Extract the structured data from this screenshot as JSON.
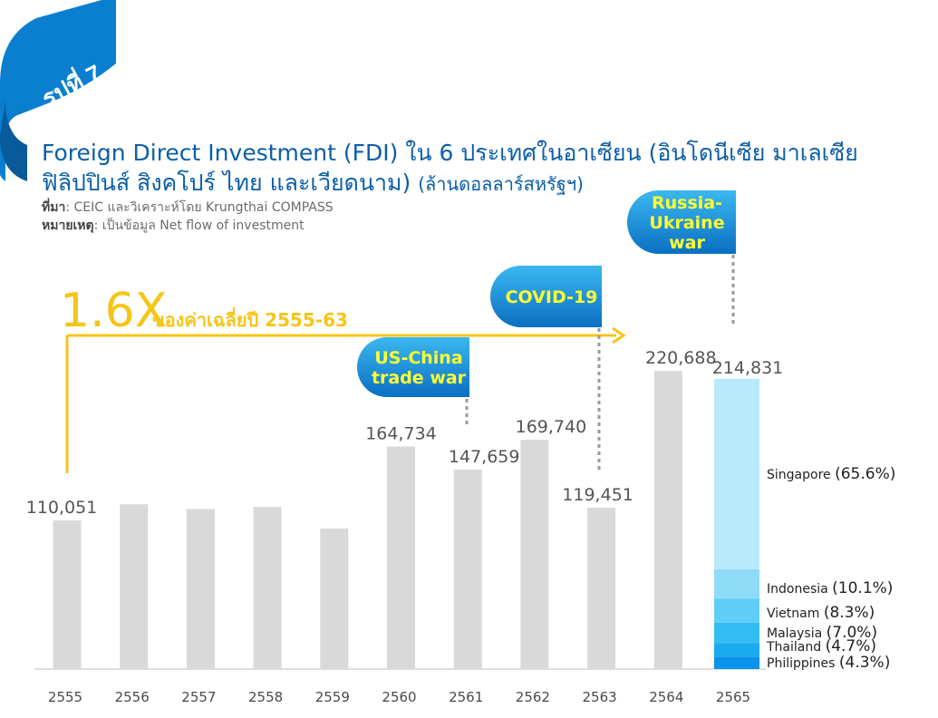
{
  "badge": {
    "label": "รูปที่ 7"
  },
  "header": {
    "title": "Foreign Direct Investment (FDI) ใน 6 ประเทศในอาเซียน (อินโดนีเซีย มาเลเซีย ฟิลิปปินส์ สิงคโปร์ ไทย และเวียดนาม)",
    "units": "(ล้านดอลลาร์สหรัฐฯ)",
    "source_label": "ที่มา",
    "source_text": ": CEIC และวิเคราะห์โดย Krungthai COMPASS",
    "note_label": "หมายเหตุ",
    "note_text": ": เป็นข้อมูล Net flow of investment"
  },
  "colors": {
    "bar": "#d9d9d9",
    "accent": "#f5c518",
    "title_blue": "#0b5ea8",
    "callout_blue": "#0e86d4",
    "callout_text": "#ffff33",
    "breakdown": [
      "#b8eafc",
      "#8fdcf9",
      "#60cdf7",
      "#33bdf3",
      "#1aaaf0",
      "#0a93ea"
    ]
  },
  "chart_data": {
    "type": "bar",
    "categories": [
      "2555",
      "2556",
      "2557",
      "2558",
      "2559",
      "2560",
      "2561",
      "2562",
      "2563",
      "2564",
      "2565"
    ],
    "values": [
      110051,
      122000,
      118500,
      120000,
      104000,
      164734,
      147659,
      169740,
      119451,
      220688,
      214831
    ],
    "value_labels": [
      "110,051",
      "",
      "",
      "",
      "",
      "164,734",
      "147,659",
      "169,740",
      "119,451",
      "220,688",
      "214,831"
    ],
    "ylim": [
      0,
      245000
    ],
    "grid": false,
    "stacked_breakdown_2565": [
      {
        "name": "Philippines",
        "share": "(4.3%)",
        "pct": 4.3
      },
      {
        "name": "Thailand",
        "share": "(4.7%)",
        "pct": 4.7
      },
      {
        "name": "Malaysia",
        "share": "(7.0%)",
        "pct": 7.0
      },
      {
        "name": "Vietnam",
        "share": "(8.3%)",
        "pct": 8.3
      },
      {
        "name": "Indonesia",
        "share": "(10.1%)",
        "pct": 10.1
      },
      {
        "name": "Singapore",
        "share": "(65.6%)",
        "pct": 65.6
      }
    ],
    "growth_annotation": {
      "big": "1.6X",
      "text": "ของค่าเฉลี่ยปี 2555-63"
    },
    "events": [
      {
        "label": "US-China trade war",
        "lines": [
          "US-China",
          "trade war"
        ],
        "category": "2561"
      },
      {
        "label": "COVID-19",
        "lines": [
          "COVID-19"
        ],
        "category": "2563"
      },
      {
        "label": "Russia-Ukraine war",
        "lines": [
          "Russia-",
          "Ukraine",
          "war"
        ],
        "category": "2565"
      }
    ]
  }
}
